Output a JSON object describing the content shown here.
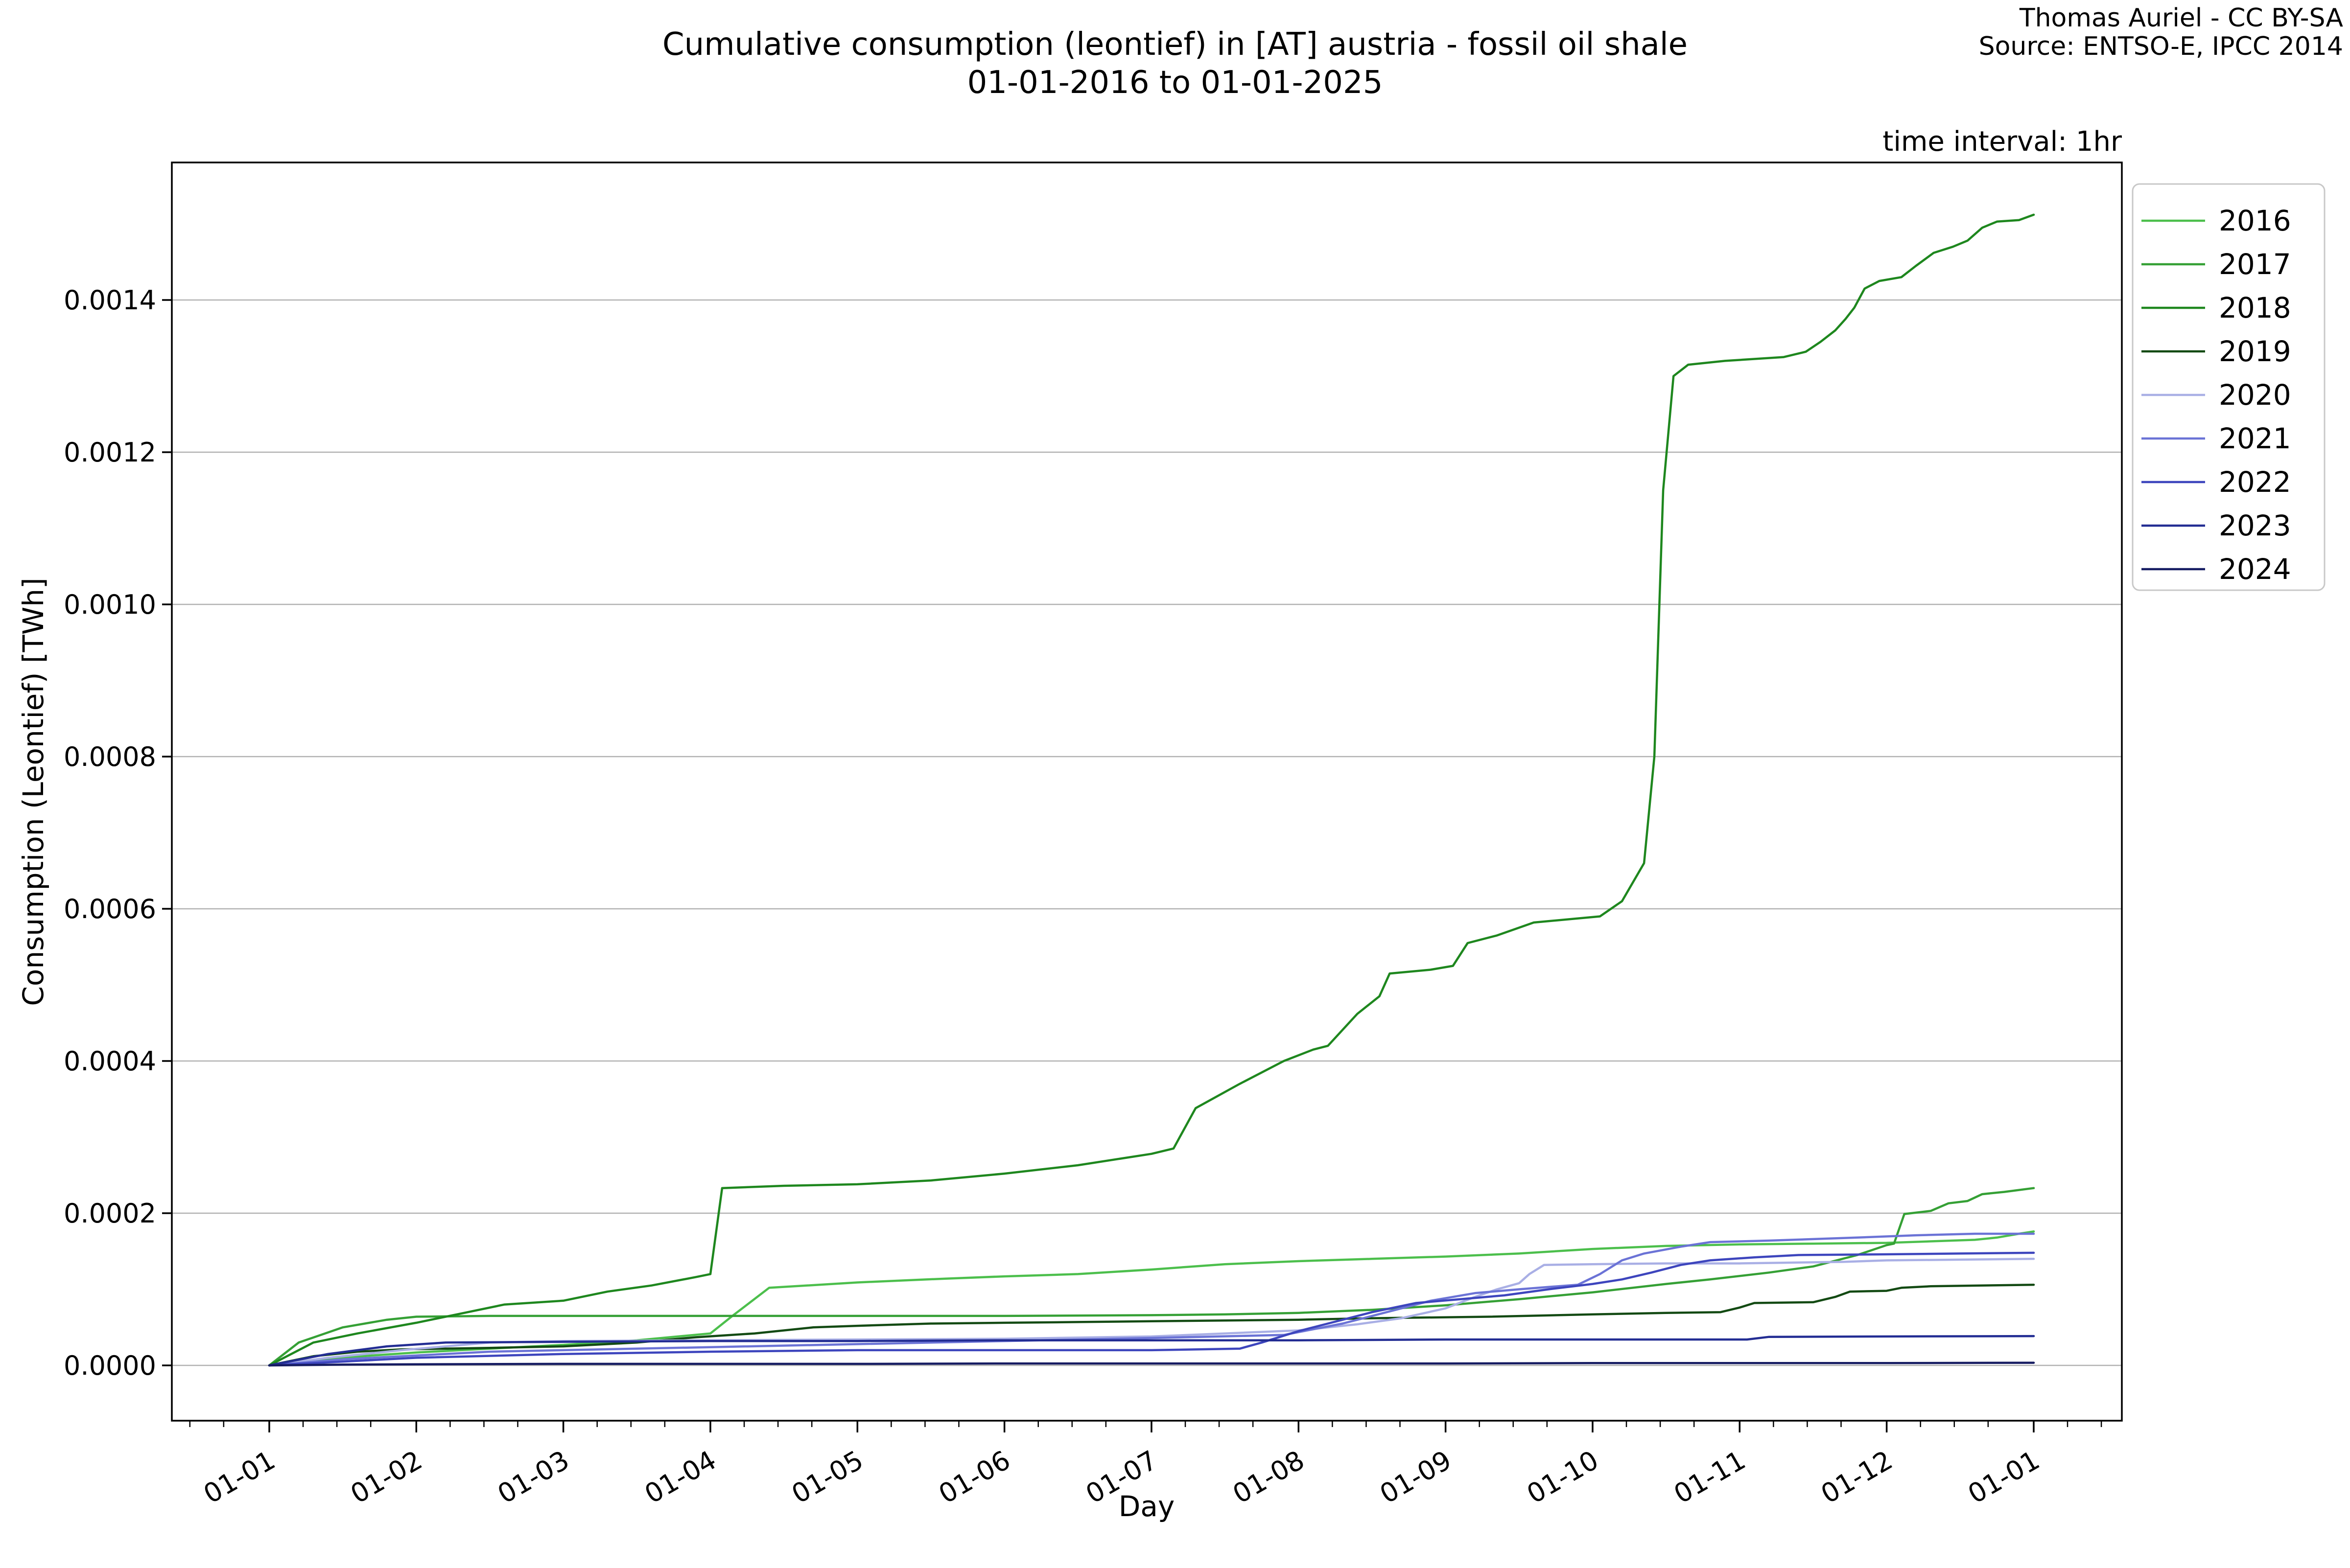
{
  "header": {
    "title_line1": "Cumulative consumption (leontief) in [AT] austria - fossil oil shale",
    "title_line2": "01-01-2016 to 01-01-2025",
    "attribution_line1": "Thomas Auriel - CC BY-SA",
    "attribution_line2": "Source: ENTSO-E, IPCC 2014",
    "time_interval_note": "time interval: 1hr"
  },
  "chart_data": {
    "type": "line",
    "title": "Cumulative consumption (leontief) in [AT] austria - fossil oil shale 01-01-2016 to 01-01-2025",
    "xlabel": "Day",
    "ylabel": "Consumption (Leontief) [TWh]",
    "grid": "horizontal",
    "legend_position": "upper right, outside axes",
    "x_tick_labels": [
      "01-01",
      "01-02",
      "01-03",
      "01-04",
      "01-05",
      "01-06",
      "01-07",
      "01-08",
      "01-09",
      "01-10",
      "01-11",
      "01-12",
      "01-01"
    ],
    "y_tick_labels": [
      "0.0000",
      "0.0002",
      "0.0004",
      "0.0006",
      "0.0008",
      "0.0010",
      "0.0012",
      "0.0014"
    ],
    "y_tick_values": [
      0.0,
      0.0002,
      0.0004,
      0.0006,
      0.0008,
      0.001,
      0.0012,
      0.0014
    ],
    "xlim_months": [
      -0.66,
      12.6
    ],
    "ylim": [
      -7.3e-06,
      0.001581
    ],
    "x_unit": "months since 01-01",
    "series": [
      {
        "name": "2016",
        "color": "#4cbf4c",
        "points": [
          [
            0,
            0
          ],
          [
            0.3,
            7e-06
          ],
          [
            0.7,
            1.3e-05
          ],
          [
            1,
            1.7e-05
          ],
          [
            1.5,
            2.2e-05
          ],
          [
            2,
            2.7e-05
          ],
          [
            2.5,
            3.3e-05
          ],
          [
            3,
            4.2e-05
          ],
          [
            3.15,
            6.5e-05
          ],
          [
            3.4,
            0.000102
          ],
          [
            4,
            0.000109
          ],
          [
            4.6,
            0.000114
          ],
          [
            5,
            0.000117
          ],
          [
            5.5,
            0.00012
          ],
          [
            6,
            0.000126
          ],
          [
            6.5,
            0.000133
          ],
          [
            7,
            0.000137
          ],
          [
            7.5,
            0.00014
          ],
          [
            8,
            0.000143
          ],
          [
            8.5,
            0.000147
          ],
          [
            9,
            0.000153
          ],
          [
            9.5,
            0.000157
          ],
          [
            10,
            0.000159
          ],
          [
            10.5,
            0.00016
          ],
          [
            11,
            0.000161
          ],
          [
            11.3,
            0.000163
          ],
          [
            11.6,
            0.000165
          ],
          [
            11.75,
            0.000168
          ],
          [
            11.9,
            0.000173
          ],
          [
            12,
            0.000176
          ]
        ]
      },
      {
        "name": "2017",
        "color": "#35a035",
        "points": [
          [
            0,
            0
          ],
          [
            0.2,
            3e-05
          ],
          [
            0.5,
            5e-05
          ],
          [
            0.8,
            6e-05
          ],
          [
            1,
            6.4e-05
          ],
          [
            1.5,
            6.5e-05
          ],
          [
            3,
            6.5e-05
          ],
          [
            5,
            6.5e-05
          ],
          [
            6,
            6.6e-05
          ],
          [
            6.5,
            6.7e-05
          ],
          [
            7,
            6.9e-05
          ],
          [
            7.5,
            7.3e-05
          ],
          [
            8,
            7.9e-05
          ],
          [
            8.5,
            8.7e-05
          ],
          [
            9,
            9.6e-05
          ],
          [
            9.5,
            0.000107
          ],
          [
            9.8,
            0.000113
          ],
          [
            10.2,
            0.000122
          ],
          [
            10.5,
            0.00013
          ],
          [
            10.8,
            0.000145
          ],
          [
            11,
            0.000158
          ],
          [
            11.05,
            0.00016
          ],
          [
            11.12,
            0.000199
          ],
          [
            11.3,
            0.000203
          ],
          [
            11.42,
            0.000213
          ],
          [
            11.55,
            0.000216
          ],
          [
            11.65,
            0.000225
          ],
          [
            11.8,
            0.000228
          ],
          [
            12,
            0.000233
          ]
        ]
      },
      {
        "name": "2018",
        "color": "#1e871e",
        "points": [
          [
            0,
            0
          ],
          [
            0.3,
            3e-05
          ],
          [
            0.6,
            4.2e-05
          ],
          [
            1,
            5.6e-05
          ],
          [
            1.3,
            6.8e-05
          ],
          [
            1.6,
            8e-05
          ],
          [
            2,
            8.5e-05
          ],
          [
            2.3,
            9.7e-05
          ],
          [
            2.6,
            0.000105
          ],
          [
            2.9,
            0.000116
          ],
          [
            3,
            0.00012
          ],
          [
            3.08,
            0.000233
          ],
          [
            3.5,
            0.000236
          ],
          [
            4,
            0.000238
          ],
          [
            4.5,
            0.000243
          ],
          [
            5,
            0.000252
          ],
          [
            5.5,
            0.000263
          ],
          [
            6,
            0.000278
          ],
          [
            6.15,
            0.000285
          ],
          [
            6.3,
            0.000338
          ],
          [
            6.6,
            0.00037
          ],
          [
            6.9,
            0.0004
          ],
          [
            7.1,
            0.000415
          ],
          [
            7.2,
            0.00042
          ],
          [
            7.4,
            0.000462
          ],
          [
            7.55,
            0.000485
          ],
          [
            7.62,
            0.000515
          ],
          [
            7.9,
            0.00052
          ],
          [
            8.05,
            0.000525
          ],
          [
            8.15,
            0.000555
          ],
          [
            8.35,
            0.000565
          ],
          [
            8.6,
            0.000582
          ],
          [
            9.05,
            0.00059
          ],
          [
            9.2,
            0.00061
          ],
          [
            9.35,
            0.00066
          ],
          [
            9.42,
            0.0008
          ],
          [
            9.48,
            0.00115
          ],
          [
            9.55,
            0.0013
          ],
          [
            9.65,
            0.001315
          ],
          [
            9.9,
            0.00132
          ],
          [
            10.3,
            0.001325
          ],
          [
            10.45,
            0.001332
          ],
          [
            10.55,
            0.001345
          ],
          [
            10.65,
            0.00136
          ],
          [
            10.72,
            0.001375
          ],
          [
            10.78,
            0.00139
          ],
          [
            10.85,
            0.001415
          ],
          [
            10.95,
            0.001425
          ],
          [
            11.1,
            0.00143
          ],
          [
            11.2,
            0.001445
          ],
          [
            11.32,
            0.001462
          ],
          [
            11.45,
            0.00147
          ],
          [
            11.55,
            0.001478
          ],
          [
            11.65,
            0.001495
          ],
          [
            11.75,
            0.001503
          ],
          [
            11.9,
            0.001505
          ],
          [
            12,
            0.001512
          ]
        ]
      },
      {
        "name": "2019",
        "color": "#134a13",
        "points": [
          [
            0,
            0
          ],
          [
            0.3,
            1.2e-05
          ],
          [
            0.6,
            1.8e-05
          ],
          [
            0.9,
            2.1e-05
          ],
          [
            1.5,
            2.3e-05
          ],
          [
            2,
            2.5e-05
          ],
          [
            2.5,
            3e-05
          ],
          [
            2.9,
            3.7e-05
          ],
          [
            3.3,
            4.2e-05
          ],
          [
            3.7,
            5e-05
          ],
          [
            4,
            5.2e-05
          ],
          [
            4.5,
            5.5e-05
          ],
          [
            5,
            5.6e-05
          ],
          [
            5.5,
            5.7e-05
          ],
          [
            6,
            5.8e-05
          ],
          [
            7,
            6e-05
          ],
          [
            7.5,
            6.2e-05
          ],
          [
            8.3,
            6.4e-05
          ],
          [
            9,
            6.7e-05
          ],
          [
            9.5,
            6.9e-05
          ],
          [
            9.87,
            7e-05
          ],
          [
            10,
            7.6e-05
          ],
          [
            10.1,
            8.2e-05
          ],
          [
            10.5,
            8.3e-05
          ],
          [
            10.65,
            9e-05
          ],
          [
            10.75,
            9.7e-05
          ],
          [
            11,
            9.8e-05
          ],
          [
            11.1,
            0.000102
          ],
          [
            11.3,
            0.000104
          ],
          [
            12,
            0.000106
          ]
        ]
      },
      {
        "name": "2020",
        "color": "#a9afe5",
        "points": [
          [
            0,
            0
          ],
          [
            0.4,
            1e-05
          ],
          [
            0.9,
            2e-05
          ],
          [
            1.5,
            3e-05
          ],
          [
            2,
            3.2e-05
          ],
          [
            3,
            3.3e-05
          ],
          [
            4,
            3.4e-05
          ],
          [
            5,
            3.5e-05
          ],
          [
            6,
            3.8e-05
          ],
          [
            6.5,
            4.2e-05
          ],
          [
            7,
            4.6e-05
          ],
          [
            7.4,
            5.4e-05
          ],
          [
            7.7,
            6.2e-05
          ],
          [
            8,
            7.5e-05
          ],
          [
            8.2,
            9e-05
          ],
          [
            8.35,
            0.0001
          ],
          [
            8.5,
            0.000108
          ],
          [
            8.57,
            0.00012
          ],
          [
            8.67,
            0.000132
          ],
          [
            9,
            0.000133
          ],
          [
            9.5,
            0.000134
          ],
          [
            10,
            0.000134
          ],
          [
            10.7,
            0.000136
          ],
          [
            11,
            0.000138
          ],
          [
            11.5,
            0.000139
          ],
          [
            12,
            0.00014
          ]
        ]
      },
      {
        "name": "2021",
        "color": "#6b73d6",
        "points": [
          [
            0,
            0
          ],
          [
            0.5,
            8e-06
          ],
          [
            1,
            1.3e-05
          ],
          [
            1.5,
            1.8e-05
          ],
          [
            2,
            2e-05
          ],
          [
            3,
            2.4e-05
          ],
          [
            4,
            2.8e-05
          ],
          [
            5,
            3.2e-05
          ],
          [
            6,
            3.6e-05
          ],
          [
            6.9,
            4e-05
          ],
          [
            7.3,
            5.5e-05
          ],
          [
            7.6,
            7e-05
          ],
          [
            7.9,
            8.5e-05
          ],
          [
            8.2,
            9.5e-05
          ],
          [
            8.5,
            0.0001
          ],
          [
            8.7,
            0.000103
          ],
          [
            8.9,
            0.000106
          ],
          [
            9.05,
            0.00012
          ],
          [
            9.2,
            0.000138
          ],
          [
            9.35,
            0.000147
          ],
          [
            9.6,
            0.000156
          ],
          [
            9.8,
            0.000162
          ],
          [
            10.2,
            0.000164
          ],
          [
            10.8,
            0.000168
          ],
          [
            11.2,
            0.000171
          ],
          [
            11.6,
            0.000173
          ],
          [
            12,
            0.000173
          ]
        ]
      },
      {
        "name": "2022",
        "color": "#3d45bd",
        "points": [
          [
            0,
            0
          ],
          [
            0.5,
            5e-06
          ],
          [
            1,
            1e-05
          ],
          [
            2,
            1.5e-05
          ],
          [
            3,
            1.8e-05
          ],
          [
            4,
            2e-05
          ],
          [
            6,
            2e-05
          ],
          [
            6.6,
            2.2e-05
          ],
          [
            6.75,
            3e-05
          ],
          [
            7,
            4.5e-05
          ],
          [
            7.2,
            5.5e-05
          ],
          [
            7.5,
            7e-05
          ],
          [
            7.8,
            8.2e-05
          ],
          [
            8.1,
            8.7e-05
          ],
          [
            8.4,
            9.2e-05
          ],
          [
            8.7,
            0.0001
          ],
          [
            9,
            0.000107
          ],
          [
            9.2,
            0.000113
          ],
          [
            9.4,
            0.000122
          ],
          [
            9.6,
            0.000132
          ],
          [
            9.8,
            0.000138
          ],
          [
            10.1,
            0.000142
          ],
          [
            10.4,
            0.000145
          ],
          [
            11,
            0.000146
          ],
          [
            11.5,
            0.000147
          ],
          [
            12,
            0.000148
          ]
        ]
      },
      {
        "name": "2023",
        "color": "#232d93",
        "points": [
          [
            0,
            0
          ],
          [
            0.4,
            1.5e-05
          ],
          [
            0.8,
            2.5e-05
          ],
          [
            1.2,
            3e-05
          ],
          [
            2,
            3.1e-05
          ],
          [
            3,
            3.2e-05
          ],
          [
            4,
            3.2e-05
          ],
          [
            5,
            3.3e-05
          ],
          [
            7,
            3.3e-05
          ],
          [
            8,
            3.4e-05
          ],
          [
            9.6,
            3.4e-05
          ],
          [
            10.05,
            3.4e-05
          ],
          [
            10.2,
            3.75e-05
          ],
          [
            11,
            3.8e-05
          ],
          [
            12,
            3.85e-05
          ]
        ]
      },
      {
        "name": "2024",
        "color": "#161c62",
        "points": [
          [
            0,
            0
          ],
          [
            0.5,
            1e-06
          ],
          [
            1,
            1.5e-06
          ],
          [
            2,
            2e-06
          ],
          [
            4,
            2e-06
          ],
          [
            5,
            2.5e-06
          ],
          [
            8,
            2.5e-06
          ],
          [
            9,
            3e-06
          ],
          [
            11,
            3e-06
          ],
          [
            12,
            3.5e-06
          ]
        ]
      }
    ]
  },
  "legend": {
    "items": [
      {
        "label": "2016",
        "color": "#4cbf4c"
      },
      {
        "label": "2017",
        "color": "#35a035"
      },
      {
        "label": "2018",
        "color": "#1e871e"
      },
      {
        "label": "2019",
        "color": "#134a13"
      },
      {
        "label": "2020",
        "color": "#a9afe5"
      },
      {
        "label": "2021",
        "color": "#6b73d6"
      },
      {
        "label": "2022",
        "color": "#3d45bd"
      },
      {
        "label": "2023",
        "color": "#232d93"
      },
      {
        "label": "2024",
        "color": "#161c62"
      }
    ]
  },
  "colors": {
    "gridline": "#b2b2b2",
    "spine": "#000000",
    "legend_border": "#c8c8c8",
    "background": "#ffffff"
  }
}
